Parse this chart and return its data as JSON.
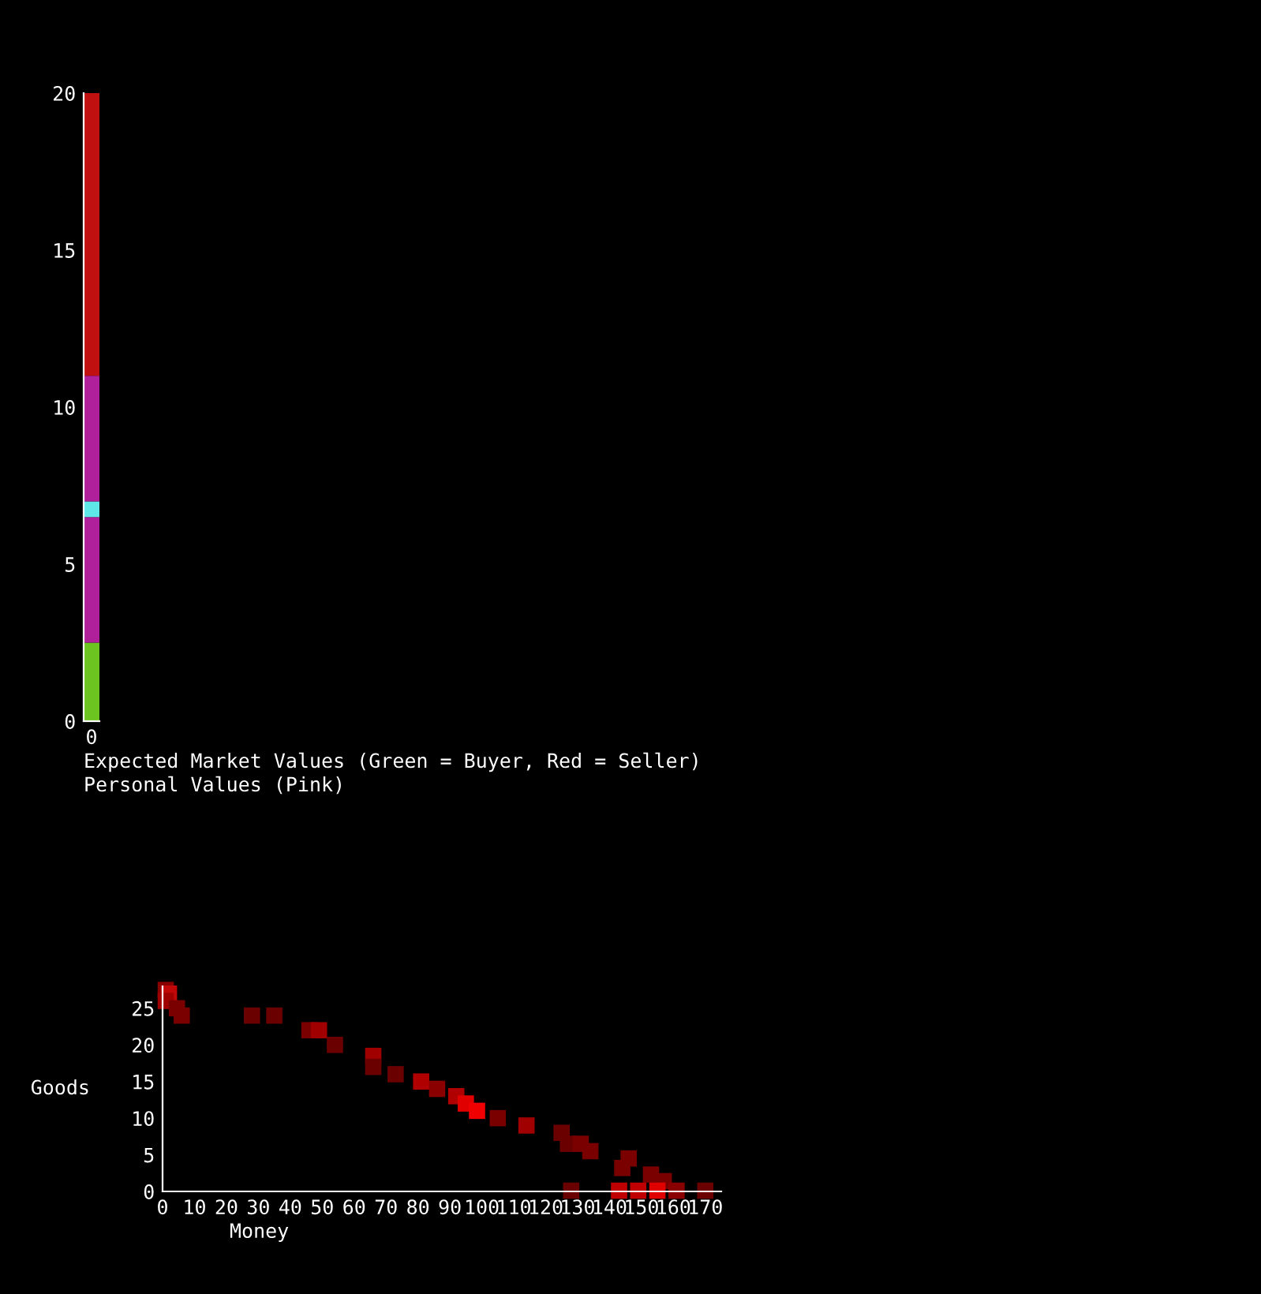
{
  "chart_data": [
    {
      "type": "bar",
      "stacked": true,
      "categories": [
        "0"
      ],
      "ylim": [
        0,
        20
      ],
      "yticks": [
        0,
        5,
        10,
        15,
        20
      ],
      "series": [
        {
          "color": "#6cc420",
          "values": [
            2.5
          ]
        },
        {
          "color": "#b0209a",
          "values": [
            4
          ]
        },
        {
          "color": "#5ee8e8",
          "values": [
            0.5
          ]
        },
        {
          "color": "#b0209a",
          "values": [
            4
          ]
        },
        {
          "color": "#c01010",
          "values": [
            9
          ]
        }
      ],
      "annotations": [
        "Expected Market Values (Green = Buyer, Red = Seller)",
        "Personal Values (Pink)"
      ]
    },
    {
      "type": "scatter",
      "marker": "square",
      "xlabel": "Money",
      "ylabel": "Goods",
      "xlim": [
        0,
        175
      ],
      "ylim": [
        0,
        28
      ],
      "xticks": [
        0,
        10,
        20,
        30,
        40,
        50,
        60,
        70,
        80,
        90,
        100,
        110,
        120,
        130,
        140,
        150,
        160,
        170
      ],
      "yticks": [
        0,
        5,
        10,
        15,
        20,
        25
      ],
      "x": [
        1,
        2,
        1,
        4.5,
        6,
        28,
        35,
        46,
        49,
        54,
        66,
        66,
        73,
        81,
        86,
        92,
        95,
        98.5,
        105,
        114,
        125,
        127,
        131,
        134,
        146,
        144,
        153,
        157,
        128,
        143,
        149,
        155,
        161,
        170
      ],
      "values": [
        27.5,
        27,
        26,
        25,
        24,
        24,
        24,
        22,
        22,
        20,
        18.5,
        17,
        16,
        15,
        14,
        13,
        12,
        11,
        10,
        9,
        8,
        6.5,
        6.5,
        5.5,
        4.5,
        3.2,
        2.3,
        1.4,
        0.1,
        0.1,
        0.1,
        0.1,
        0.1,
        0.1
      ],
      "colors": [
        "#8a0000",
        "#c00808",
        "#a00000",
        "#7a0000",
        "#7a0000",
        "#6a0000",
        "#6a0000",
        "#7a0000",
        "#a00000",
        "#6a0000",
        "#a00000",
        "#6a0000",
        "#6a0000",
        "#b00000",
        "#8a0000",
        "#b00000",
        "#e00000",
        "#f00000",
        "#7a0000",
        "#a00000",
        "#6a0000",
        "#6a0000",
        "#7a0000",
        "#7a0000",
        "#7a0000",
        "#7a0000",
        "#7a0000",
        "#7a0000",
        "#6a0000",
        "#c00000",
        "#c00000",
        "#e00000",
        "#8a0000",
        "#6a0000"
      ]
    }
  ]
}
